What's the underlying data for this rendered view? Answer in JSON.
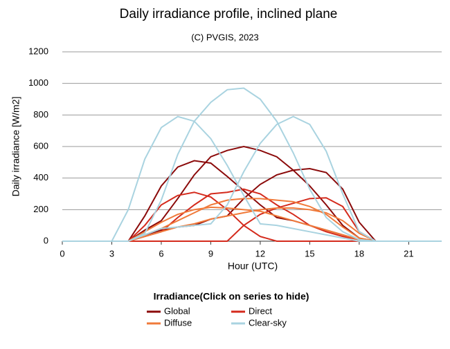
{
  "chart_data": {
    "type": "line",
    "title": "Daily irradiance profile, inclined plane",
    "subtitle": "(C) PVGIS, 2023",
    "x_label": "Hour (UTC)",
    "y_label": "Daily irradiance [W/m2]",
    "legend_title": "Irradiance(Click on series to hide)",
    "x": [
      0,
      1,
      2,
      3,
      4,
      5,
      6,
      7,
      8,
      9,
      10,
      11,
      12,
      13,
      14,
      15,
      16,
      17,
      18,
      19,
      20,
      21,
      22,
      23
    ],
    "xlim": [
      0,
      23
    ],
    "xticks": [
      0,
      3,
      6,
      9,
      12,
      15,
      18,
      21
    ],
    "ylim": [
      0,
      1200
    ],
    "yticks": [
      0,
      200,
      400,
      600,
      800,
      1000,
      1200
    ],
    "grid": true,
    "series": [
      {
        "name": "Global",
        "color": "#8b0a0a",
        "curves": [
          [
            0,
            0,
            0,
            0,
            0,
            160,
            350,
            470,
            510,
            495,
            410,
            320,
            230,
            150,
            130,
            100,
            70,
            40,
            10,
            0,
            0,
            0,
            0,
            0
          ],
          [
            0,
            0,
            0,
            0,
            0,
            70,
            130,
            270,
            420,
            535,
            575,
            600,
            575,
            535,
            450,
            350,
            230,
            100,
            20,
            0,
            0,
            0,
            0,
            0
          ],
          [
            0,
            0,
            0,
            0,
            0,
            40,
            70,
            90,
            100,
            140,
            160,
            270,
            360,
            420,
            450,
            460,
            435,
            330,
            120,
            0,
            0,
            0,
            0,
            0
          ]
        ]
      },
      {
        "name": "Direct",
        "color": "#d42a1c",
        "curves": [
          [
            0,
            0,
            0,
            0,
            0,
            100,
            230,
            290,
            310,
            280,
            200,
            100,
            30,
            0,
            0,
            0,
            0,
            0,
            0,
            0,
            0,
            0,
            0,
            0
          ],
          [
            0,
            0,
            0,
            0,
            0,
            30,
            60,
            150,
            230,
            300,
            310,
            330,
            300,
            230,
            170,
            100,
            60,
            30,
            10,
            0,
            0,
            0,
            0,
            0
          ],
          [
            0,
            0,
            0,
            0,
            0,
            0,
            0,
            0,
            0,
            0,
            0,
            100,
            170,
            210,
            240,
            270,
            275,
            220,
            60,
            0,
            0,
            0,
            0,
            0
          ]
        ]
      },
      {
        "name": "Diffuse",
        "color": "#f07a3a",
        "curves": [
          [
            0,
            0,
            0,
            0,
            0,
            60,
            120,
            170,
            200,
            215,
            210,
            200,
            190,
            160,
            130,
            100,
            70,
            40,
            10,
            0,
            0,
            0,
            0,
            0
          ],
          [
            0,
            0,
            0,
            0,
            0,
            40,
            80,
            130,
            180,
            230,
            260,
            270,
            270,
            260,
            250,
            220,
            170,
            90,
            20,
            0,
            0,
            0,
            0,
            0
          ],
          [
            0,
            0,
            0,
            0,
            0,
            30,
            60,
            90,
            110,
            140,
            160,
            180,
            200,
            210,
            210,
            200,
            180,
            130,
            50,
            0,
            0,
            0,
            0,
            0
          ]
        ]
      },
      {
        "name": "Clear-sky",
        "color": "#a9d3e0",
        "curves": [
          [
            0,
            0,
            0,
            0,
            200,
            520,
            720,
            790,
            760,
            650,
            480,
            290,
            110,
            100,
            80,
            60,
            40,
            20,
            0,
            0,
            0,
            0,
            0,
            0
          ],
          [
            0,
            0,
            0,
            0,
            0,
            50,
            260,
            550,
            760,
            880,
            960,
            970,
            900,
            760,
            560,
            330,
            150,
            60,
            10,
            0,
            0,
            0,
            0,
            0
          ],
          [
            0,
            0,
            0,
            0,
            0,
            40,
            80,
            90,
            100,
            110,
            230,
            440,
            620,
            740,
            790,
            740,
            570,
            300,
            60,
            0,
            0,
            0,
            0,
            0
          ]
        ]
      }
    ]
  }
}
